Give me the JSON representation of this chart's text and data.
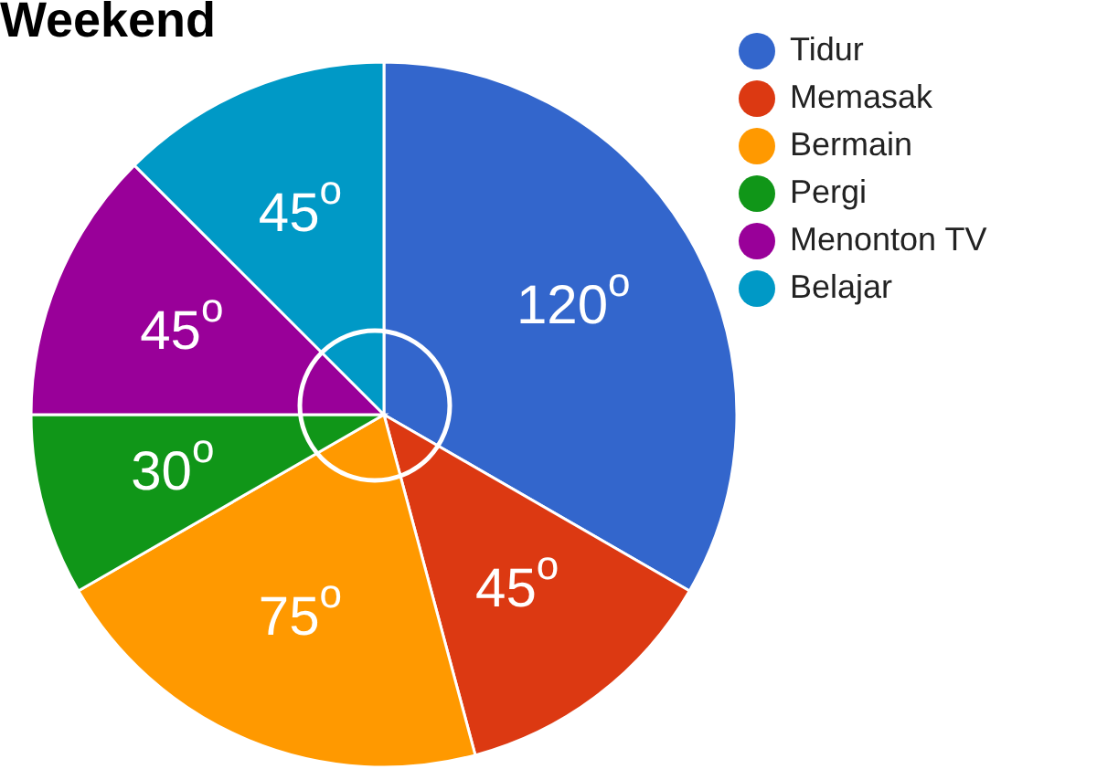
{
  "chart_data": {
    "type": "pie",
    "title": "Weekend",
    "categories": [
      "Tidur",
      "Memasak",
      "Bermain",
      "Pergi",
      "Menonton TV",
      "Belajar"
    ],
    "values": [
      120,
      45,
      75,
      30,
      45,
      45
    ],
    "colors": [
      "#3366cc",
      "#dc3912",
      "#ff9900",
      "#109618",
      "#990099",
      "#0099c6"
    ],
    "value_labels": [
      "120$^{o}$",
      "45$^{o}$",
      "75$^{o}$",
      "30$^{o}$",
      "45$^{o}$",
      "45$^{o}$"
    ],
    "legend": "right"
  }
}
